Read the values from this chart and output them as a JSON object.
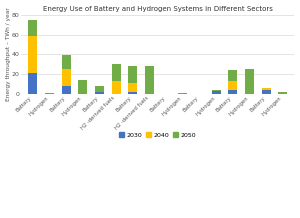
{
  "title": "Energy Use of Battery and Hydrogen Systems in Different Sectors",
  "ylabel": "Energy throughput – TWh / year",
  "ylim": [
    0,
    80
  ],
  "yticks": [
    0,
    20,
    40,
    60,
    80
  ],
  "categories": [
    "Battery",
    "Hydrogen",
    "Battery",
    "Hydrogen",
    "Battery",
    "H2 -derived fuels",
    "Battery",
    "H2 -derived fuels",
    "Battery",
    "Hydrogen",
    "Battery",
    "Hydrogen",
    "Battery",
    "Hydrogen",
    "Battery",
    "Hydrogen"
  ],
  "values_2030": [
    21,
    0,
    8,
    0,
    2,
    0,
    2,
    0,
    0,
    0,
    0,
    3.5,
    4.5,
    0,
    4,
    0
  ],
  "values_2040": [
    38,
    0,
    17,
    0,
    0,
    13,
    9,
    0,
    0,
    0.5,
    0,
    0,
    9,
    0,
    2,
    0
  ],
  "values_2050": [
    16,
    1.5,
    14.5,
    14.5,
    6,
    17,
    17,
    28,
    0.5,
    0.5,
    0,
    1,
    11,
    25,
    0,
    2.5
  ],
  "color_2030": "#4472c4",
  "color_2040": "#ffc000",
  "color_2050": "#70ad47",
  "background_color": "#ffffff",
  "grid_color": "#d9d9d9",
  "bar_width": 0.55,
  "legend_labels": [
    "2030",
    "2040",
    "2050"
  ]
}
